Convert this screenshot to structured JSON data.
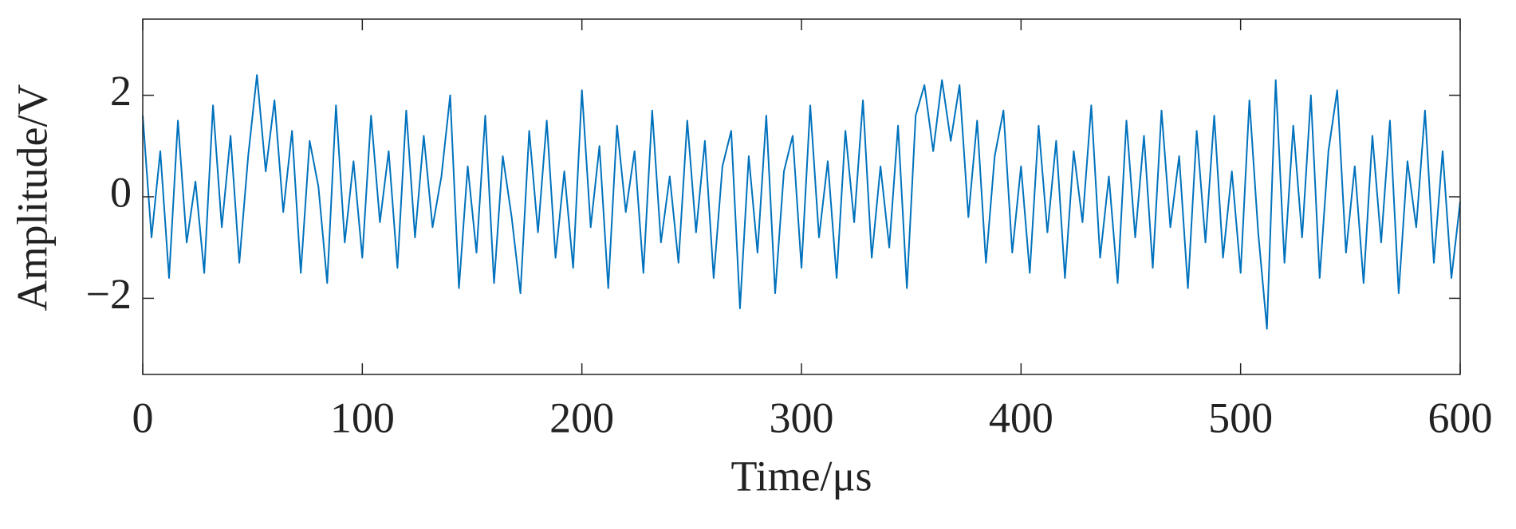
{
  "chart_data": {
    "type": "line",
    "xlabel": "Time/μs",
    "ylabel": "Amplitude/V",
    "x": [
      0,
      4,
      8,
      12,
      16,
      20,
      24,
      28,
      32,
      36,
      40,
      44,
      48,
      52,
      56,
      60,
      64,
      68,
      72,
      76,
      80,
      84,
      88,
      92,
      96,
      100,
      104,
      108,
      112,
      116,
      120,
      124,
      128,
      132,
      136,
      140,
      144,
      148,
      152,
      156,
      160,
      164,
      168,
      172,
      176,
      180,
      184,
      188,
      192,
      196,
      200,
      204,
      208,
      212,
      216,
      220,
      224,
      228,
      232,
      236,
      240,
      244,
      248,
      252,
      256,
      260,
      264,
      268,
      272,
      276,
      280,
      284,
      288,
      292,
      296,
      300,
      304,
      308,
      312,
      316,
      320,
      324,
      328,
      332,
      336,
      340,
      344,
      348,
      352,
      356,
      360,
      364,
      368,
      372,
      376,
      380,
      384,
      388,
      392,
      396,
      400,
      404,
      408,
      412,
      416,
      420,
      424,
      428,
      432,
      436,
      440,
      444,
      448,
      452,
      456,
      460,
      464,
      468,
      472,
      476,
      480,
      484,
      488,
      492,
      496,
      500,
      504,
      508,
      512,
      516,
      520,
      524,
      528,
      532,
      536,
      540,
      544,
      548,
      552,
      556,
      560,
      564,
      568,
      572,
      576,
      580,
      584,
      588,
      592,
      596,
      600
    ],
    "series": [
      {
        "color": "#0072BD",
        "values": [
          1.6,
          -0.8,
          0.9,
          -1.6,
          1.5,
          -0.9,
          0.3,
          -1.5,
          1.8,
          -0.6,
          1.2,
          -1.3,
          0.8,
          2.4,
          0.5,
          1.9,
          -0.3,
          1.3,
          -1.5,
          1.1,
          0.2,
          -1.7,
          1.8,
          -0.9,
          0.7,
          -1.2,
          1.6,
          -0.5,
          0.9,
          -1.4,
          1.7,
          -0.8,
          1.2,
          -0.6,
          0.4,
          2.0,
          -1.8,
          0.6,
          -1.1,
          1.6,
          -1.7,
          0.8,
          -0.4,
          -1.9,
          1.3,
          -0.7,
          1.5,
          -1.2,
          0.5,
          -1.4,
          2.1,
          -0.6,
          1.0,
          -1.8,
          1.4,
          -0.3,
          0.9,
          -1.5,
          1.7,
          -0.9,
          0.4,
          -1.3,
          1.5,
          -0.7,
          1.1,
          -1.6,
          0.6,
          1.3,
          -2.2,
          0.8,
          -1.1,
          1.6,
          -1.9,
          0.5,
          1.2,
          -1.4,
          1.8,
          -0.8,
          0.7,
          -1.6,
          1.3,
          -0.5,
          1.9,
          -1.2,
          0.6,
          -1.0,
          1.4,
          -1.8,
          1.6,
          2.2,
          0.9,
          2.3,
          1.1,
          2.2,
          -0.4,
          1.5,
          -1.3,
          0.8,
          1.7,
          -1.1,
          0.6,
          -1.5,
          1.4,
          -0.7,
          1.1,
          -1.6,
          0.9,
          -0.5,
          1.8,
          -1.2,
          0.4,
          -1.7,
          1.5,
          -0.8,
          1.2,
          -1.4,
          1.7,
          -0.6,
          0.8,
          -1.8,
          1.3,
          -0.9,
          1.6,
          -1.2,
          0.5,
          -1.5,
          1.9,
          -0.7,
          -2.6,
          2.3,
          -1.3,
          1.4,
          -0.8,
          2.0,
          -1.6,
          0.9,
          2.1,
          -1.1,
          0.6,
          -1.7,
          1.2,
          -0.9,
          1.5,
          -1.9,
          0.7,
          -0.6,
          1.7,
          -1.3,
          0.9,
          -1.6,
          -0.1
        ]
      }
    ],
    "xlim": [
      0,
      600
    ],
    "xticks": [
      0,
      100,
      200,
      300,
      400,
      500,
      600
    ],
    "ylim": [
      -3.5,
      3.5
    ],
    "yticks": [
      {
        "value": -2,
        "label": "−2"
      },
      0,
      2
    ],
    "grid": false
  }
}
